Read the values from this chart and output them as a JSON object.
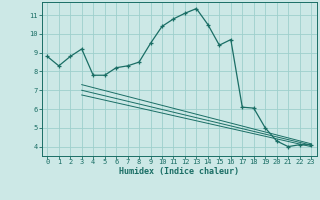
{
  "xlabel": "Humidex (Indice chaleur)",
  "ylabel": "",
  "bg_color": "#cce8e6",
  "grid_color": "#9ecfcc",
  "line_color": "#1a6e65",
  "xlim": [
    -0.5,
    23.5
  ],
  "ylim": [
    3.5,
    11.7
  ],
  "xticks": [
    0,
    1,
    2,
    3,
    4,
    5,
    6,
    7,
    8,
    9,
    10,
    11,
    12,
    13,
    14,
    15,
    16,
    17,
    18,
    19,
    20,
    21,
    22,
    23
  ],
  "yticks": [
    4,
    5,
    6,
    7,
    8,
    9,
    10,
    11
  ],
  "main_line_x": [
    0,
    1,
    2,
    3,
    4,
    5,
    6,
    7,
    8,
    9,
    10,
    11,
    12,
    13,
    14,
    15,
    16,
    17,
    18,
    19,
    20,
    21,
    22,
    23
  ],
  "main_line_y": [
    8.8,
    8.3,
    8.8,
    9.2,
    7.8,
    7.8,
    8.2,
    8.3,
    8.5,
    9.5,
    10.4,
    10.8,
    11.1,
    11.35,
    10.5,
    9.4,
    9.7,
    6.1,
    6.05,
    5.0,
    4.3,
    4.0,
    4.1,
    4.1
  ],
  "lower_line1_x": [
    3,
    23
  ],
  "lower_line1_y": [
    7.3,
    4.15
  ],
  "lower_line2_x": [
    3,
    23
  ],
  "lower_line2_y": [
    6.75,
    4.0
  ],
  "lower_line3_x": [
    3,
    23
  ],
  "lower_line3_y": [
    7.0,
    4.08
  ],
  "marker_size": 3.5
}
